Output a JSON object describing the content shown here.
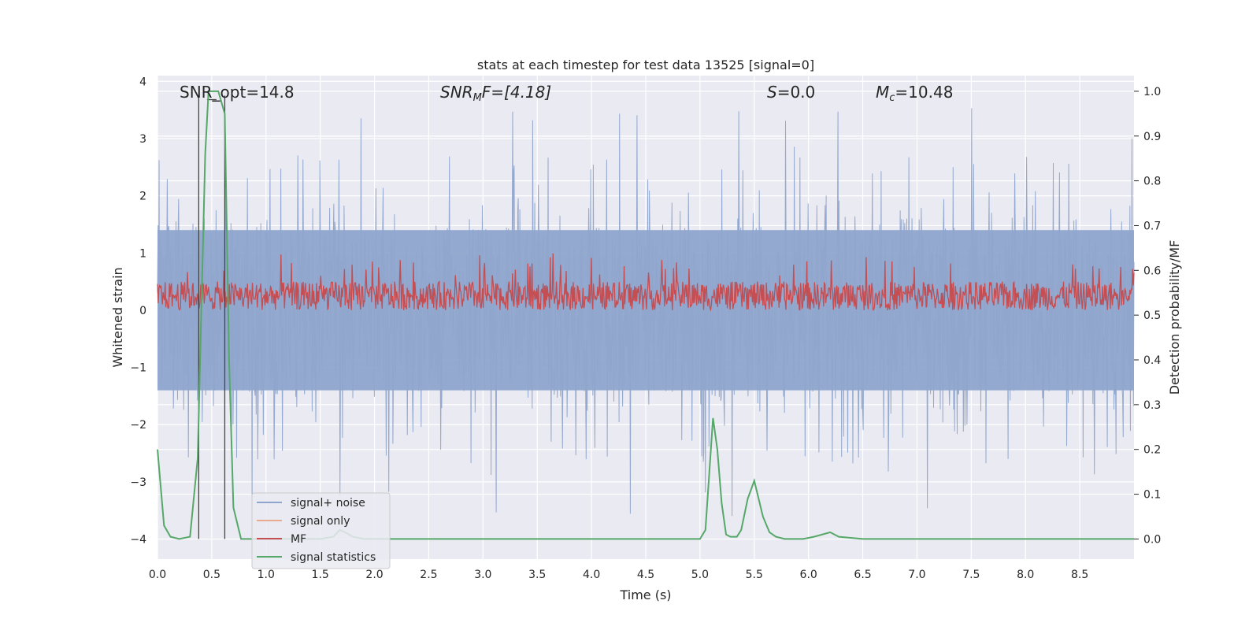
{
  "chart_data": {
    "type": "line",
    "title": "stats at each timestep for test data 13525 [signal=0]",
    "xlabel": "Time (s)",
    "ylabel_left": "Whitened strain",
    "ylabel_right": "Detection probability/MF",
    "xlim": [
      0.0,
      9.0
    ],
    "ylim_left": [
      -4.35,
      4.1
    ],
    "ylim_right": [
      -0.045,
      1.035
    ],
    "xticks": [
      "0.0",
      "0.5",
      "1.0",
      "1.5",
      "2.0",
      "2.5",
      "3.0",
      "3.5",
      "4.0",
      "4.5",
      "5.0",
      "5.5",
      "6.0",
      "6.5",
      "7.0",
      "7.5",
      "8.0",
      "8.5"
    ],
    "yticks_left": [
      "4",
      "3",
      "2",
      "1",
      "0",
      "−1",
      "−2",
      "−3",
      "−4"
    ],
    "yticks_right": [
      "1.0",
      "0.9",
      "0.8",
      "0.7",
      "0.6",
      "0.5",
      "0.4",
      "0.3",
      "0.2",
      "0.1",
      "0.0"
    ],
    "grid": true,
    "legend_placement": "lower-left",
    "annotations": {
      "snr_opt": "SNR_opt=14.8",
      "snr_mf_name": "SNR",
      "snr_mf_sub": "M",
      "snr_mf_rest": "F=[4.18]",
      "s_name": "S",
      "s_rest": "=0.0",
      "mc_name": "M",
      "mc_sub": "c",
      "mc_rest": "=10.48"
    },
    "vlines_x": [
      0.38,
      0.62
    ],
    "series": [
      {
        "name": "signal+ noise",
        "color": "#8fa5cc",
        "axis": "left",
        "envelope_upper": 1.4,
        "envelope_lower": -1.4,
        "peak_upper": 3.7,
        "peak_lower": -4.0
      },
      {
        "name": "signal only",
        "color": "#e8a98c",
        "axis": "left",
        "values": []
      },
      {
        "name": "MF",
        "color": "#c44e52",
        "axis": "left",
        "band": [
          0.0,
          0.5
        ],
        "peak": 1.0
      },
      {
        "name": "signal statistics",
        "color": "#55a868",
        "axis": "right",
        "x": [
          0.0,
          0.06,
          0.12,
          0.2,
          0.3,
          0.37,
          0.44,
          0.47,
          0.52,
          0.56,
          0.62,
          0.66,
          0.7,
          0.77,
          0.85,
          1.2,
          1.5,
          1.62,
          1.68,
          1.73,
          1.8,
          1.9,
          2.0,
          3.0,
          4.0,
          4.5,
          5.0,
          5.05,
          5.1,
          5.12,
          5.16,
          5.2,
          5.24,
          5.28,
          5.34,
          5.38,
          5.44,
          5.5,
          5.55,
          5.58,
          5.64,
          5.7,
          5.78,
          5.86,
          5.95,
          6.05,
          6.2,
          6.28,
          6.5,
          7.0,
          8.0,
          9.0
        ],
        "y": [
          0.2,
          0.03,
          0.005,
          0.0,
          0.005,
          0.18,
          0.86,
          1.0,
          1.0,
          1.0,
          0.95,
          0.4,
          0.07,
          0.0,
          0.0,
          0.0,
          0.0,
          0.005,
          0.02,
          0.015,
          0.005,
          0.0,
          0.0,
          0.0,
          0.0,
          0.0,
          0.0,
          0.02,
          0.2,
          0.27,
          0.2,
          0.08,
          0.01,
          0.005,
          0.005,
          0.02,
          0.09,
          0.13,
          0.08,
          0.05,
          0.015,
          0.005,
          0.0,
          0.0,
          0.0,
          0.005,
          0.015,
          0.005,
          0.0,
          0.0,
          0.0,
          0.0
        ]
      }
    ]
  }
}
